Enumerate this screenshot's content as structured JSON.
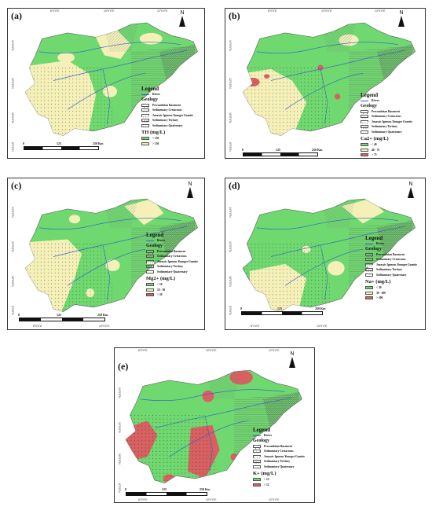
{
  "legend_title": "Legend",
  "rivers_label": "Rivers",
  "geology_title": "Geology",
  "geology_items": [
    "Precambrian Basement",
    "Sedimentary Cretaceous",
    "Jurassic Igneous Younger Granite",
    "Sedimentary Tertiary",
    "Sedimentary Quaternary"
  ],
  "north_label": "N",
  "scale": {
    "zero": "0",
    "mid": "125",
    "end": "250 Km"
  },
  "coords": {
    "top": [
      "8°0'0\"E",
      "10°0'0\"E",
      "12°0'0\"E"
    ],
    "left": [
      "14°0'0\"N",
      "12°0'0\"N",
      "10°0'0\"N",
      "8°0'0\"N"
    ]
  },
  "colors": {
    "low": "#6fd86f",
    "mid": "#f4f0b8",
    "high": "#d86060",
    "river": "#2f5fcc",
    "geo": "#c9a6c3"
  },
  "panels": [
    {
      "label": "(a)",
      "param": "TH (mg/L)",
      "classes": [
        {
          "label": "< 150",
          "color": "#6fd86f"
        },
        {
          "label": "> 150",
          "color": "#f4f0b8"
        }
      ]
    },
    {
      "label": "(b)",
      "param": "Ca2+ (mg/L)",
      "classes": [
        {
          "label": "< 40",
          "color": "#6fd86f"
        },
        {
          "label": "40 - 75",
          "color": "#f4f0b8"
        },
        {
          "label": "> 75",
          "color": "#d86060"
        }
      ]
    },
    {
      "label": "(c)",
      "param": "Mg2+ (mg/L)",
      "classes": [
        {
          "label": "< 10",
          "color": "#6fd86f"
        },
        {
          "label": "10 - 50",
          "color": "#f4f0b8"
        },
        {
          "label": "> 50",
          "color": "#d86060"
        }
      ]
    },
    {
      "label": "(d)",
      "param": "Na+ (mg/L)",
      "classes": [
        {
          "label": "< 30",
          "color": "#6fd86f"
        },
        {
          "label": "30 - 200",
          "color": "#f4f0b8"
        },
        {
          "label": "> 200",
          "color": "#d86060"
        }
      ]
    },
    {
      "label": "(e)",
      "param": "K+ (mg/L)",
      "classes": [
        {
          "label": "< 12",
          "color": "#6fd86f"
        },
        {
          "label": "> 12",
          "color": "#d86060"
        }
      ]
    }
  ]
}
